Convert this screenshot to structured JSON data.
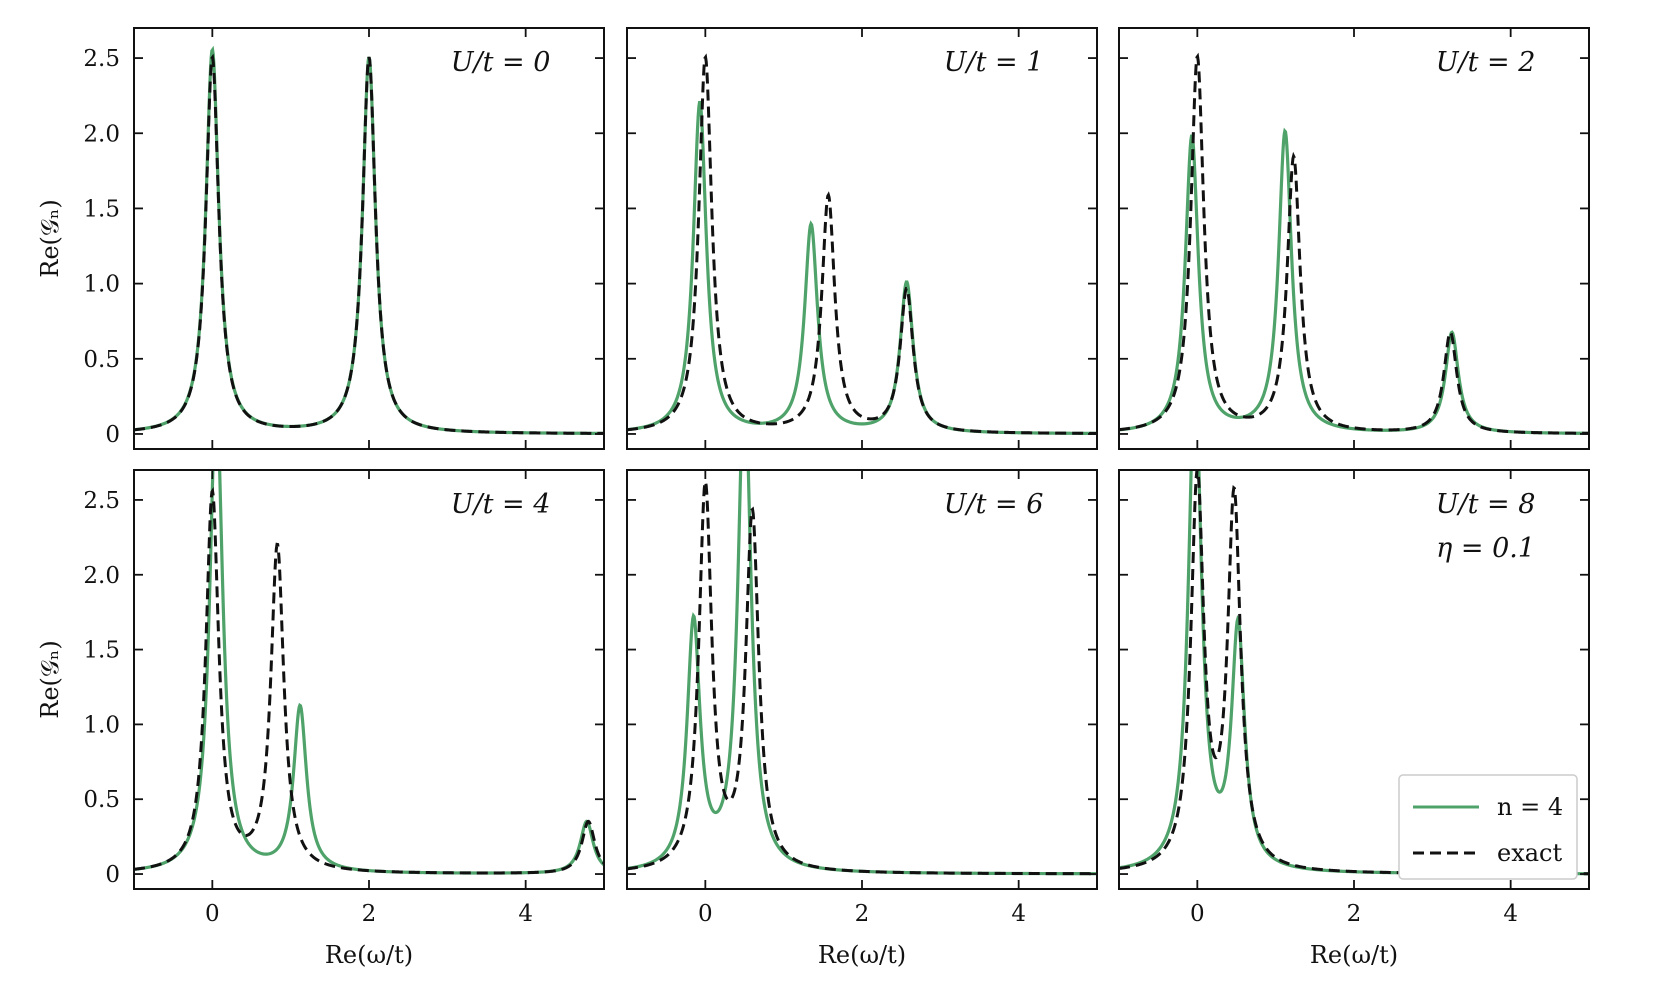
{
  "chart_data": {
    "type": "line",
    "grid": false,
    "eta": 0.1,
    "x_axis_label": "Re(ω/t)",
    "y_axis_label": "Re(𝒢ₙ)",
    "xlim": [
      -1,
      5
    ],
    "ylim": [
      -0.1,
      2.7
    ],
    "x_ticks": [
      0,
      2,
      4
    ],
    "x_tick_labels": [
      "0",
      "2",
      "4"
    ],
    "y_ticks": [
      0,
      0.5,
      1.0,
      1.5,
      2.0,
      2.5
    ],
    "y_tick_labels": [
      "0",
      "0.5",
      "1.0",
      "1.5",
      "2.0",
      "2.5"
    ],
    "legend": {
      "placement": "bottom-right of last panel",
      "entries": [
        {
          "label": "n = 4",
          "style": "solid",
          "color": "#4fa36a"
        },
        {
          "label": "exact",
          "style": "dashed",
          "color": "#111111"
        }
      ]
    },
    "panels": [
      {
        "annotation": "U/t = 0",
        "series": [
          {
            "name": "n = 4",
            "peaks": [
              {
                "x": 0.0,
                "y": 2.55
              },
              {
                "x": 2.0,
                "y": 2.5
              }
            ]
          },
          {
            "name": "exact",
            "peaks": [
              {
                "x": 0.0,
                "y": 2.5
              },
              {
                "x": 2.0,
                "y": 2.5
              }
            ]
          }
        ]
      },
      {
        "annotation": "U/t = 1",
        "series": [
          {
            "name": "n = 4",
            "peaks": [
              {
                "x": -0.07,
                "y": 2.2
              },
              {
                "x": 1.35,
                "y": 1.38
              },
              {
                "x": 2.57,
                "y": 1.0
              }
            ]
          },
          {
            "name": "exact",
            "peaks": [
              {
                "x": 0.0,
                "y": 2.5
              },
              {
                "x": 1.57,
                "y": 1.57
              },
              {
                "x": 2.57,
                "y": 0.95
              }
            ]
          }
        ]
      },
      {
        "annotation": "U/t = 2",
        "series": [
          {
            "name": "n = 4",
            "peaks": [
              {
                "x": -0.07,
                "y": 1.97
              },
              {
                "x": 1.12,
                "y": 2.0
              },
              {
                "x": 3.25,
                "y": 0.67
              }
            ]
          },
          {
            "name": "exact",
            "peaks": [
              {
                "x": 0.0,
                "y": 2.5
              },
              {
                "x": 1.23,
                "y": 1.83
              },
              {
                "x": 3.23,
                "y": 0.67
              }
            ]
          }
        ]
      },
      {
        "annotation": "U/t = 4",
        "series": [
          {
            "name": "n = 4",
            "peaks": [
              {
                "x": 0.05,
                "y": 3.2
              },
              {
                "x": 1.12,
                "y": 1.1
              },
              {
                "x": 4.78,
                "y": 0.35
              }
            ]
          },
          {
            "name": "exact",
            "peaks": [
              {
                "x": 0.0,
                "y": 2.53
              },
              {
                "x": 0.83,
                "y": 2.17
              },
              {
                "x": 4.8,
                "y": 0.35
              }
            ]
          }
        ]
      },
      {
        "annotation": "U/t = 6",
        "series": [
          {
            "name": "n = 4",
            "peaks": [
              {
                "x": -0.15,
                "y": 1.65
              },
              {
                "x": 0.5,
                "y": 3.3
              }
            ]
          },
          {
            "name": "exact",
            "peaks": [
              {
                "x": 0.0,
                "y": 2.56
              },
              {
                "x": 0.6,
                "y": 2.37
              }
            ]
          }
        ]
      },
      {
        "annotation": "U/t = 8",
        "annotation2": "η = 0.1",
        "series": [
          {
            "name": "n = 4",
            "peaks": [
              {
                "x": -0.03,
                "y": 3.3
              },
              {
                "x": 0.52,
                "y": 1.6
              }
            ]
          },
          {
            "name": "exact",
            "peaks": [
              {
                "x": 0.0,
                "y": 2.6
              },
              {
                "x": 0.47,
                "y": 2.47
              }
            ]
          }
        ]
      }
    ]
  }
}
